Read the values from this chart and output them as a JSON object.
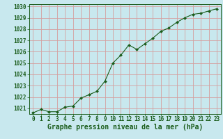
{
  "x": [
    0,
    1,
    2,
    3,
    4,
    5,
    6,
    7,
    8,
    9,
    10,
    11,
    12,
    13,
    14,
    15,
    16,
    17,
    18,
    19,
    20,
    21,
    22,
    23
  ],
  "y": [
    1020.6,
    1020.9,
    1020.7,
    1020.7,
    1021.1,
    1021.2,
    1021.9,
    1022.2,
    1022.5,
    1023.4,
    1025.0,
    1025.7,
    1026.6,
    1026.2,
    1026.7,
    1027.2,
    1027.8,
    1028.1,
    1028.6,
    1029.0,
    1029.3,
    1029.4,
    1029.6,
    1029.8
  ],
  "ylim": [
    1020.5,
    1030.2
  ],
  "xlim": [
    -0.5,
    23.5
  ],
  "yticks": [
    1021,
    1022,
    1023,
    1024,
    1025,
    1026,
    1027,
    1028,
    1029,
    1030
  ],
  "xticks": [
    0,
    1,
    2,
    3,
    4,
    5,
    6,
    7,
    8,
    9,
    10,
    11,
    12,
    13,
    14,
    15,
    16,
    17,
    18,
    19,
    20,
    21,
    22,
    23
  ],
  "line_color": "#1a5c1a",
  "marker_color": "#1a5c1a",
  "bg_color": "#c8e8ee",
  "grid_color": "#d4a0a0",
  "xlabel": "Graphe pression niveau de la mer (hPa)",
  "xlabel_color": "#1a5c1a",
  "tick_color": "#1a5c1a",
  "tick_fontsize": 5.5,
  "xlabel_fontsize": 7.0
}
